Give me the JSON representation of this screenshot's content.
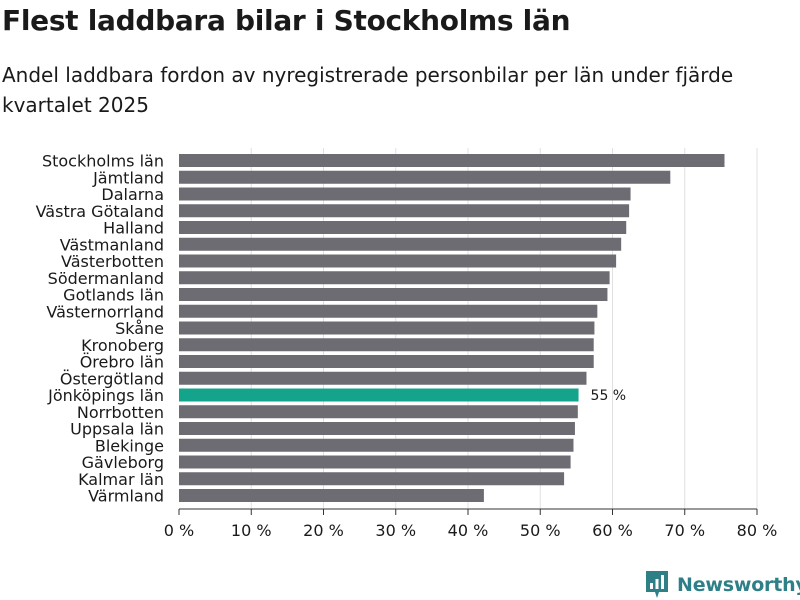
{
  "header": {
    "title": "Flest laddbara bilar i Stockholms län",
    "subtitle": "Andel laddbara fordon av nyregistrerade personbilar per län under fjärde kvartalet 2025"
  },
  "brand": {
    "name": "Newsworthy",
    "icon": "newsworthy-logo-icon"
  },
  "colors": {
    "bar": "#6e6c73",
    "highlight": "#14a38b",
    "grid": "#e0e0e0",
    "axis": "#333333",
    "brand": "#2e7f86"
  },
  "chart_data": {
    "type": "bar",
    "orientation": "horizontal",
    "title": "Flest laddbara bilar i Stockholms län",
    "subtitle": "Andel laddbara fordon av nyregistrerade personbilar per län under fjärde kvartalet 2025",
    "xlabel": "",
    "ylabel": "",
    "xlim": [
      0,
      80
    ],
    "ticks": [
      0,
      10,
      20,
      30,
      40,
      50,
      60,
      70,
      80
    ],
    "tick_labels": [
      "0 %",
      "10 %",
      "20 %",
      "30 %",
      "40 %",
      "50 %",
      "60 %",
      "70 %",
      "80 %"
    ],
    "grid": true,
    "categories": [
      "Stockholms län",
      "Jämtland",
      "Dalarna",
      "Västra Götaland",
      "Halland",
      "Västmanland",
      "Västerbotten",
      "Södermanland",
      "Gotlands län",
      "Västernorrland",
      "Skåne",
      "Kronoberg",
      "Örebro län",
      "Östergötland",
      "Jönköpings län",
      "Norrbotten",
      "Uppsala län",
      "Blekinge",
      "Gävleborg",
      "Kalmar län",
      "Värmland"
    ],
    "values": [
      75.5,
      68.0,
      62.5,
      62.3,
      61.9,
      61.2,
      60.5,
      59.6,
      59.3,
      57.9,
      57.5,
      57.4,
      57.4,
      56.4,
      55.3,
      55.2,
      54.8,
      54.6,
      54.2,
      53.3,
      42.2
    ],
    "highlight_index": 14,
    "highlight_label": "55 %"
  }
}
